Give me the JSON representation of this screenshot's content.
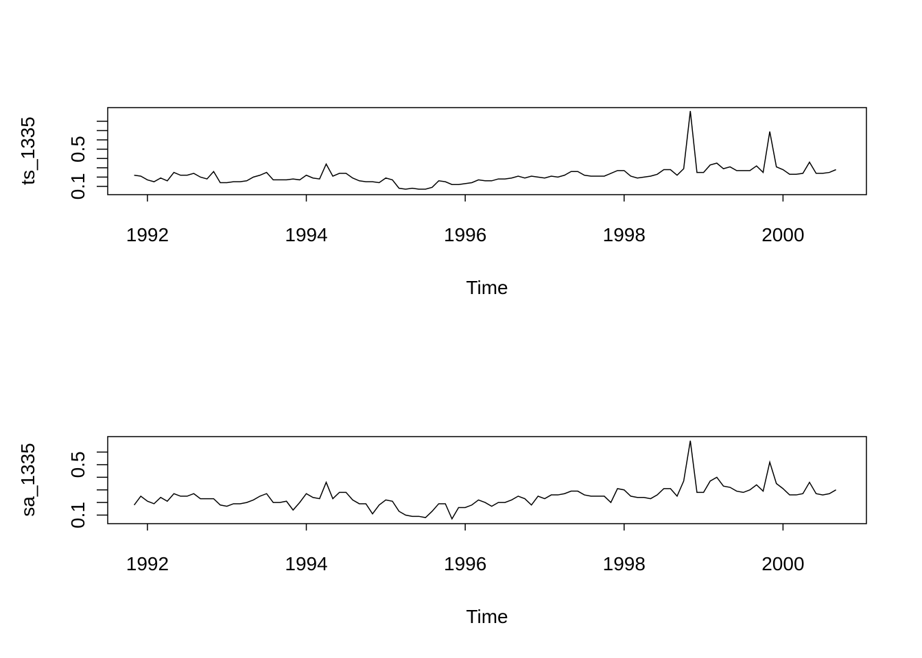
{
  "chart_data": [
    {
      "type": "line",
      "title": "",
      "xlabel": "Time",
      "ylabel": "ts_1335",
      "xlim": [
        1991.5,
        2001.05
      ],
      "ylim": [
        0.05,
        0.9
      ],
      "x_ticks": [
        1992,
        1994,
        1996,
        1998,
        2000
      ],
      "y_ticks": [
        0.1,
        0.2,
        0.3,
        0.4,
        0.5,
        0.6,
        0.7,
        0.8
      ],
      "y_tick_labels": [
        {
          "value": 0.1,
          "label": "0.1"
        },
        {
          "value": 0.5,
          "label": "0.5"
        }
      ],
      "grid": false,
      "series": [
        {
          "x_start": 1991.8333,
          "x_step": 0.0833333,
          "values": [
            0.22,
            0.21,
            0.17,
            0.15,
            0.19,
            0.16,
            0.25,
            0.22,
            0.22,
            0.24,
            0.2,
            0.18,
            0.26,
            0.14,
            0.14,
            0.15,
            0.15,
            0.16,
            0.2,
            0.22,
            0.25,
            0.17,
            0.17,
            0.17,
            0.18,
            0.17,
            0.22,
            0.19,
            0.18,
            0.34,
            0.21,
            0.24,
            0.24,
            0.19,
            0.16,
            0.15,
            0.15,
            0.14,
            0.19,
            0.17,
            0.08,
            0.07,
            0.08,
            0.07,
            0.07,
            0.09,
            0.16,
            0.15,
            0.12,
            0.12,
            0.13,
            0.14,
            0.17,
            0.16,
            0.16,
            0.18,
            0.18,
            0.19,
            0.21,
            0.19,
            0.21,
            0.2,
            0.19,
            0.21,
            0.2,
            0.22,
            0.26,
            0.26,
            0.22,
            0.21,
            0.21,
            0.21,
            0.24,
            0.27,
            0.27,
            0.21,
            0.19,
            0.2,
            0.21,
            0.23,
            0.28,
            0.28,
            0.22,
            0.29,
            0.91,
            0.25,
            0.25,
            0.33,
            0.35,
            0.29,
            0.31,
            0.27,
            0.27,
            0.27,
            0.32,
            0.25,
            0.69,
            0.31,
            0.28,
            0.23,
            0.23,
            0.24,
            0.36,
            0.24,
            0.24,
            0.25,
            0.28
          ]
        }
      ]
    },
    {
      "type": "line",
      "title": "",
      "xlabel": "Time",
      "ylabel": "sa_1335",
      "xlim": [
        1991.5,
        2001.05
      ],
      "ylim": [
        0.05,
        0.7
      ],
      "x_ticks": [
        1992,
        1994,
        1996,
        1998,
        2000
      ],
      "y_ticks": [
        0.1,
        0.2,
        0.3,
        0.4,
        0.5,
        0.6
      ],
      "y_tick_labels": [
        {
          "value": 0.1,
          "label": "0.1"
        },
        {
          "value": 0.5,
          "label": "0.5"
        }
      ],
      "grid": false,
      "series": [
        {
          "x_start": 1991.8333,
          "x_step": 0.0833333,
          "values": [
            0.18,
            0.25,
            0.21,
            0.19,
            0.24,
            0.21,
            0.27,
            0.25,
            0.25,
            0.27,
            0.23,
            0.23,
            0.23,
            0.18,
            0.17,
            0.19,
            0.19,
            0.2,
            0.22,
            0.25,
            0.27,
            0.2,
            0.2,
            0.21,
            0.14,
            0.2,
            0.27,
            0.24,
            0.23,
            0.36,
            0.23,
            0.28,
            0.28,
            0.22,
            0.19,
            0.19,
            0.11,
            0.18,
            0.22,
            0.21,
            0.13,
            0.1,
            0.09,
            0.09,
            0.08,
            0.13,
            0.19,
            0.19,
            0.07,
            0.16,
            0.16,
            0.18,
            0.22,
            0.2,
            0.17,
            0.2,
            0.2,
            0.22,
            0.25,
            0.23,
            0.18,
            0.25,
            0.23,
            0.26,
            0.26,
            0.27,
            0.29,
            0.29,
            0.26,
            0.25,
            0.25,
            0.25,
            0.2,
            0.31,
            0.3,
            0.25,
            0.24,
            0.24,
            0.23,
            0.26,
            0.31,
            0.31,
            0.25,
            0.37,
            0.69,
            0.28,
            0.28,
            0.37,
            0.4,
            0.33,
            0.32,
            0.29,
            0.28,
            0.3,
            0.34,
            0.29,
            0.52,
            0.35,
            0.31,
            0.26,
            0.26,
            0.27,
            0.36,
            0.27,
            0.26,
            0.27,
            0.3
          ]
        }
      ]
    }
  ]
}
